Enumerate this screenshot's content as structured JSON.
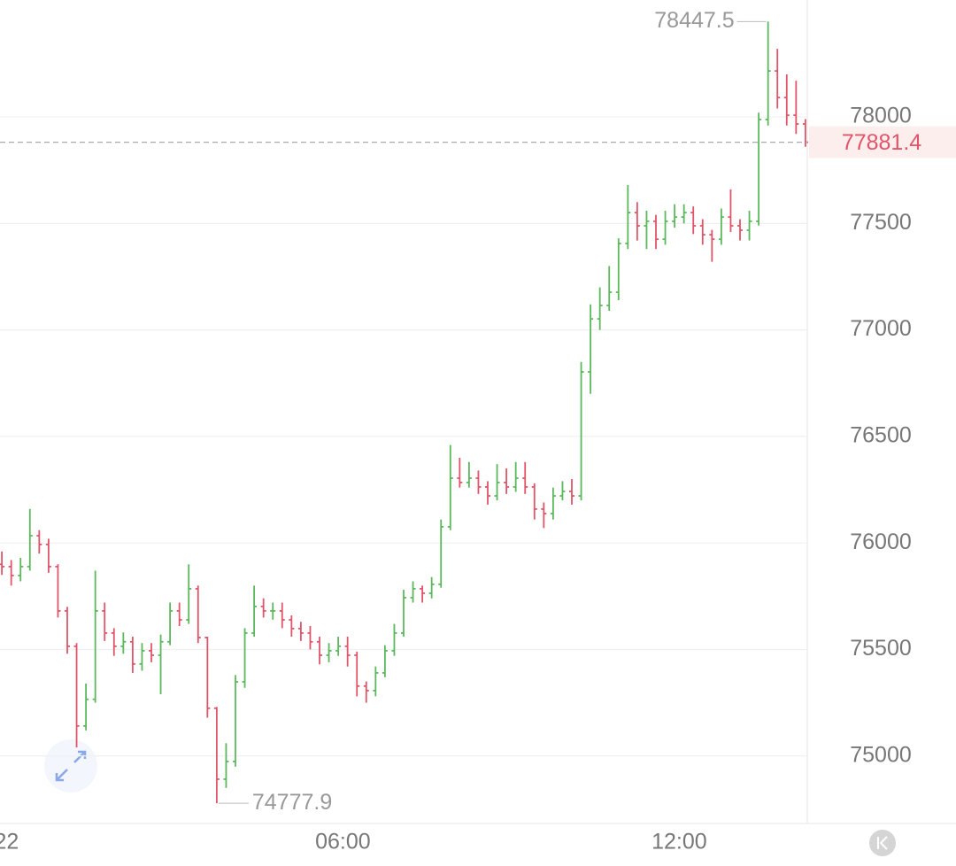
{
  "chart_data": {
    "type": "ohlc",
    "x": [
      -5,
      5,
      15,
      25,
      35,
      45,
      55,
      65,
      75,
      85,
      95,
      105,
      115,
      125,
      135,
      145,
      155,
      165,
      175,
      185,
      195,
      205,
      215,
      225,
      235,
      245,
      255,
      265,
      275,
      285,
      295,
      305,
      315,
      325,
      335,
      345,
      355,
      365,
      375,
      385,
      395,
      405,
      415,
      425,
      435,
      445,
      455,
      465,
      475,
      485,
      495,
      505,
      515,
      525,
      535,
      545,
      555,
      565,
      575,
      585,
      595,
      605,
      615,
      625,
      635,
      645,
      655,
      665,
      675,
      685,
      695,
      705,
      715,
      725,
      735,
      745,
      755,
      765,
      775,
      785,
      795,
      805,
      815,
      825,
      835,
      845,
      855
    ],
    "open": [
      75900,
      75889,
      75847,
      75889,
      76034,
      75993,
      75889,
      75681,
      75515,
      75141,
      75266,
      75681,
      75577,
      75515,
      75536,
      75432,
      75494,
      75473,
      75536,
      75681,
      75639,
      75785,
      75556,
      75224,
      74891,
      74974,
      75348,
      75577,
      75702,
      75681,
      75681,
      75639,
      75598,
      75577,
      75536,
      75473,
      75494,
      75515,
      75473,
      75328,
      75307,
      75390,
      75494,
      75577,
      75743,
      75785,
      75764,
      75806,
      76076,
      76304,
      76284,
      76304,
      76263,
      76221,
      76284,
      76263,
      76304,
      76263,
      76159,
      76138,
      76221,
      76242,
      76221,
      76803,
      77052,
      77115,
      77177,
      77406,
      77551,
      77489,
      77510,
      77426,
      77510,
      77530,
      77551,
      77489,
      77447,
      77426,
      77530,
      77489,
      77468,
      77510,
      77988,
      78216,
      78091,
      78008,
      77967
    ],
    "high": [
      75960,
      75920,
      75930,
      76160,
      76060,
      76020,
      75900,
      75700,
      75530,
      75340,
      75870,
      75720,
      75600,
      75580,
      75560,
      75530,
      75530,
      75570,
      75720,
      75720,
      75900,
      75800,
      75560,
      75230,
      75060,
      75380,
      75600,
      75800,
      75740,
      75720,
      75720,
      75660,
      75630,
      75610,
      75560,
      75530,
      75560,
      75560,
      75490,
      75350,
      75420,
      75520,
      75620,
      75780,
      75820,
      75800,
      75840,
      76110,
      76460,
      76400,
      76380,
      76340,
      76290,
      76370,
      76350,
      76380,
      76380,
      76280,
      76190,
      76260,
      76290,
      76300,
      76850,
      77120,
      77200,
      77300,
      77430,
      77680,
      77600,
      77560,
      77540,
      77560,
      77590,
      77590,
      77580,
      77520,
      77470,
      77570,
      77660,
      77520,
      77560,
      78020,
      78447.5,
      78320,
      78200,
      78170,
      77990
    ],
    "low": [
      75850,
      75800,
      75820,
      75870,
      75950,
      75860,
      75650,
      75480,
      75040,
      75120,
      75250,
      75540,
      75470,
      75480,
      75390,
      75400,
      75440,
      75290,
      75520,
      75610,
      75620,
      75530,
      75180,
      74777.9,
      74850,
      74950,
      75320,
      75560,
      75650,
      75640,
      75600,
      75560,
      75540,
      75500,
      75430,
      75440,
      75470,
      75420,
      75280,
      75250,
      75280,
      75370,
      75470,
      75560,
      75720,
      75720,
      75740,
      75790,
      76060,
      76260,
      76260,
      76230,
      76180,
      76200,
      76230,
      76240,
      76230,
      76110,
      76070,
      76110,
      76200,
      76180,
      76200,
      76700,
      77000,
      77090,
      77140,
      77380,
      77420,
      77380,
      77380,
      77400,
      77480,
      77500,
      77450,
      77400,
      77320,
      77400,
      77460,
      77420,
      77420,
      77490,
      77960,
      78040,
      77960,
      77920,
      77860
    ],
    "close": [
      75889,
      75847,
      75889,
      76034,
      75993,
      75889,
      75681,
      75515,
      75141,
      75266,
      75681,
      75577,
      75515,
      75536,
      75432,
      75494,
      75473,
      75536,
      75681,
      75639,
      75785,
      75556,
      75224,
      74891,
      74974,
      75348,
      75577,
      75702,
      75681,
      75681,
      75639,
      75598,
      75577,
      75536,
      75473,
      75494,
      75515,
      75473,
      75328,
      75307,
      75390,
      75494,
      75577,
      75743,
      75785,
      75764,
      75806,
      76076,
      76304,
      76284,
      76304,
      76263,
      76221,
      76284,
      76263,
      76304,
      76263,
      76159,
      76138,
      76221,
      76242,
      76221,
      76803,
      77052,
      77115,
      77177,
      77406,
      77551,
      77489,
      77510,
      77426,
      77510,
      77530,
      77551,
      77489,
      77447,
      77426,
      77530,
      77489,
      77468,
      77510,
      77988,
      78216,
      78091,
      78008,
      77967,
      77881.4
    ],
    "up_color": "#5cb85c",
    "down_color": "#e0556a",
    "xlim": [
      -7,
      857
    ],
    "ylim": [
      74683,
      78549
    ],
    "xticks": [
      {
        "value": 0,
        "label": "22"
      },
      {
        "value": 360,
        "label": "06:00"
      },
      {
        "value": 720,
        "label": "12:00"
      }
    ],
    "yticks": [
      75000,
      75500,
      76000,
      76500,
      77000,
      77500,
      78000
    ],
    "grid": true,
    "max_label": 78447.5,
    "min_label": 74777.9,
    "last_price": 77881.4
  }
}
